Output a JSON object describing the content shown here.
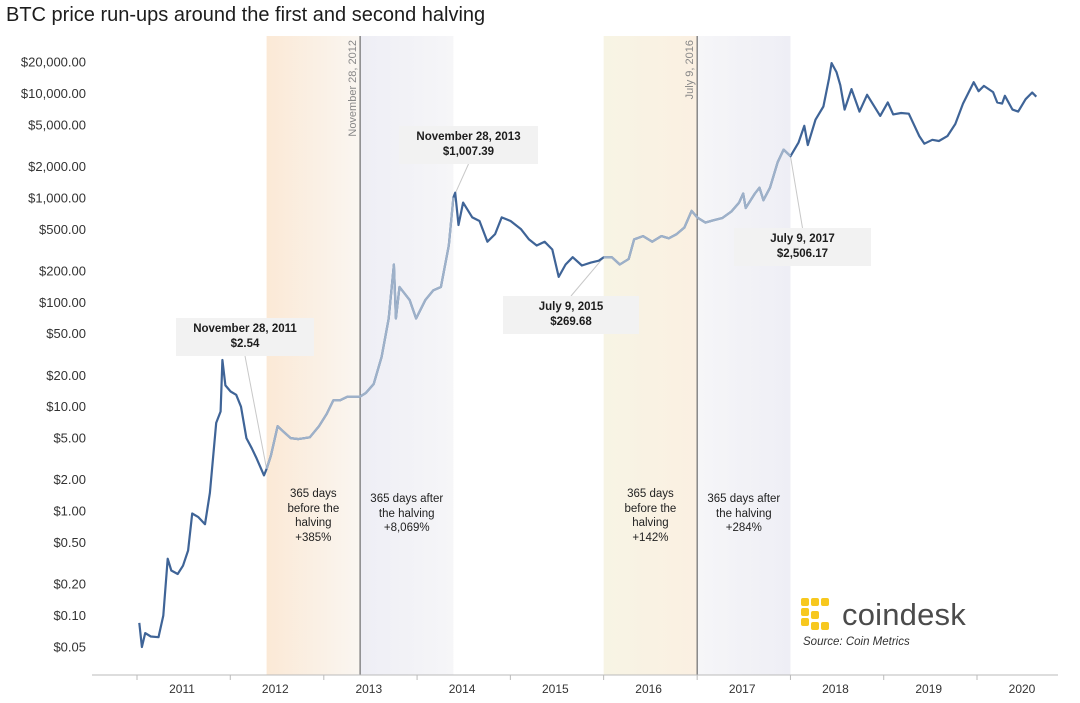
{
  "chart_data": {
    "type": "line",
    "title": "BTC price run-ups around the first and second halving",
    "y_scale": "log",
    "x_range": [
      "2010-07-01",
      "2020-03-15"
    ],
    "ylim": [
      0.035,
      28000
    ],
    "y_ticks": [
      {
        "value": 20000,
        "label": "$20,000.00"
      },
      {
        "value": 10000,
        "label": "$10,000.00"
      },
      {
        "value": 5000,
        "label": "$5,000.00"
      },
      {
        "value": 2000,
        "label": "$2,000.00"
      },
      {
        "value": 1000,
        "label": "$1,000.00"
      },
      {
        "value": 500,
        "label": "$500.00"
      },
      {
        "value": 200,
        "label": "$200.00"
      },
      {
        "value": 100,
        "label": "$100.00"
      },
      {
        "value": 50,
        "label": "$50.00"
      },
      {
        "value": 20,
        "label": "$20.00"
      },
      {
        "value": 10,
        "label": "$10.00"
      },
      {
        "value": 5,
        "label": "$5.00"
      },
      {
        "value": 2,
        "label": "$2.00"
      },
      {
        "value": 1,
        "label": "$1.00"
      },
      {
        "value": 0.5,
        "label": "$0.50"
      },
      {
        "value": 0.2,
        "label": "$0.20"
      },
      {
        "value": 0.1,
        "label": "$0.10"
      },
      {
        "value": 0.05,
        "label": "$0.05"
      }
    ],
    "x_ticks": [
      {
        "date": "2011-01-01",
        "label": "2011"
      },
      {
        "date": "2012-01-01",
        "label": "2012"
      },
      {
        "date": "2013-01-01",
        "label": "2013"
      },
      {
        "date": "2014-01-01",
        "label": "2014"
      },
      {
        "date": "2015-01-01",
        "label": "2015"
      },
      {
        "date": "2016-01-01",
        "label": "2016"
      },
      {
        "date": "2017-01-01",
        "label": "2017"
      },
      {
        "date": "2018-01-01",
        "label": "2018"
      },
      {
        "date": "2019-01-01",
        "label": "2019"
      },
      {
        "date": "2020-01-01",
        "label": "2020"
      }
    ],
    "series": [
      {
        "color": "#3f6497",
        "highlight_color": "#9eb1c9",
        "points": [
          [
            "2010-07-18",
            0.085
          ],
          [
            "2010-07-28",
            0.05
          ],
          [
            "2010-08-10",
            0.068
          ],
          [
            "2010-09-01",
            0.063
          ],
          [
            "2010-10-01",
            0.062
          ],
          [
            "2010-10-20",
            0.1
          ],
          [
            "2010-11-06",
            0.35
          ],
          [
            "2010-11-20",
            0.27
          ],
          [
            "2010-12-15",
            0.25
          ],
          [
            "2011-01-05",
            0.3
          ],
          [
            "2011-01-25",
            0.42
          ],
          [
            "2011-02-10",
            0.95
          ],
          [
            "2011-03-05",
            0.88
          ],
          [
            "2011-04-01",
            0.75
          ],
          [
            "2011-04-20",
            1.5
          ],
          [
            "2011-05-15",
            7
          ],
          [
            "2011-06-01",
            9
          ],
          [
            "2011-06-08",
            28
          ],
          [
            "2011-06-20",
            16
          ],
          [
            "2011-07-10",
            14
          ],
          [
            "2011-08-01",
            13
          ],
          [
            "2011-08-20",
            10
          ],
          [
            "2011-09-10",
            5
          ],
          [
            "2011-10-01",
            4
          ],
          [
            "2011-10-20",
            3.2
          ],
          [
            "2011-11-18",
            2.2
          ],
          [
            "2011-11-28",
            2.54
          ],
          [
            "2011-12-15",
            3.4
          ],
          [
            "2012-01-10",
            6.5
          ],
          [
            "2012-02-01",
            5.8
          ],
          [
            "2012-03-01",
            5.0
          ],
          [
            "2012-04-01",
            4.9
          ],
          [
            "2012-05-15",
            5.1
          ],
          [
            "2012-06-20",
            6.5
          ],
          [
            "2012-07-20",
            8.5
          ],
          [
            "2012-08-15",
            11.5
          ],
          [
            "2012-09-10",
            11.5
          ],
          [
            "2012-10-10",
            12.5
          ],
          [
            "2012-11-28",
            12.5
          ],
          [
            "2012-12-20",
            13.5
          ],
          [
            "2013-01-20",
            16.5
          ],
          [
            "2013-02-20",
            30
          ],
          [
            "2013-03-20",
            70
          ],
          [
            "2013-04-09",
            230
          ],
          [
            "2013-04-17",
            70
          ],
          [
            "2013-05-01",
            140
          ],
          [
            "2013-06-10",
            105
          ],
          [
            "2013-07-05",
            70
          ],
          [
            "2013-08-10",
            105
          ],
          [
            "2013-09-10",
            130
          ],
          [
            "2013-10-10",
            140
          ],
          [
            "2013-11-10",
            350
          ],
          [
            "2013-11-28",
            1007.39
          ],
          [
            "2013-12-05",
            1120
          ],
          [
            "2013-12-18",
            550
          ],
          [
            "2014-01-05",
            900
          ],
          [
            "2014-02-10",
            650
          ],
          [
            "2014-03-10",
            600
          ],
          [
            "2014-04-10",
            380
          ],
          [
            "2014-05-10",
            450
          ],
          [
            "2014-06-05",
            650
          ],
          [
            "2014-07-10",
            600
          ],
          [
            "2014-08-20",
            500
          ],
          [
            "2014-09-20",
            400
          ],
          [
            "2014-10-20",
            350
          ],
          [
            "2014-11-20",
            380
          ],
          [
            "2014-12-20",
            320
          ],
          [
            "2015-01-14",
            175
          ],
          [
            "2015-02-10",
            230
          ],
          [
            "2015-03-10",
            270
          ],
          [
            "2015-04-15",
            225
          ],
          [
            "2015-05-20",
            240
          ],
          [
            "2015-06-20",
            250
          ],
          [
            "2015-07-09",
            269.68
          ],
          [
            "2015-08-10",
            270
          ],
          [
            "2015-09-10",
            230
          ],
          [
            "2015-10-15",
            260
          ],
          [
            "2015-11-05",
            400
          ],
          [
            "2015-12-10",
            430
          ],
          [
            "2016-01-15",
            380
          ],
          [
            "2016-02-20",
            430
          ],
          [
            "2016-03-20",
            410
          ],
          [
            "2016-04-20",
            450
          ],
          [
            "2016-05-20",
            520
          ],
          [
            "2016-06-17",
            750
          ],
          [
            "2016-07-09",
            650
          ],
          [
            "2016-08-10",
            580
          ],
          [
            "2016-09-10",
            610
          ],
          [
            "2016-10-15",
            640
          ],
          [
            "2016-11-20",
            740
          ],
          [
            "2016-12-20",
            900
          ],
          [
            "2017-01-05",
            1100
          ],
          [
            "2017-01-15",
            800
          ],
          [
            "2017-02-20",
            1100
          ],
          [
            "2017-03-10",
            1250
          ],
          [
            "2017-03-25",
            950
          ],
          [
            "2017-04-20",
            1250
          ],
          [
            "2017-05-20",
            2200
          ],
          [
            "2017-06-12",
            2900
          ],
          [
            "2017-07-09",
            2506.17
          ],
          [
            "2017-08-10",
            3400
          ],
          [
            "2017-09-01",
            4900
          ],
          [
            "2017-09-15",
            3200
          ],
          [
            "2017-10-15",
            5600
          ],
          [
            "2017-11-15",
            7500
          ],
          [
            "2017-12-07",
            14000
          ],
          [
            "2017-12-17",
            19500
          ],
          [
            "2018-01-05",
            16000
          ],
          [
            "2018-01-20",
            12000
          ],
          [
            "2018-02-06",
            7000
          ],
          [
            "2018-03-05",
            11000
          ],
          [
            "2018-04-05",
            6700
          ],
          [
            "2018-05-05",
            9700
          ],
          [
            "2018-06-25",
            6100
          ],
          [
            "2018-07-25",
            8200
          ],
          [
            "2018-08-15",
            6300
          ],
          [
            "2018-09-15",
            6500
          ],
          [
            "2018-10-15",
            6400
          ],
          [
            "2018-11-25",
            3900
          ],
          [
            "2018-12-15",
            3300
          ],
          [
            "2019-01-15",
            3600
          ],
          [
            "2019-02-10",
            3500
          ],
          [
            "2019-03-15",
            3900
          ],
          [
            "2019-04-15",
            5100
          ],
          [
            "2019-05-15",
            8000
          ],
          [
            "2019-06-26",
            12800
          ],
          [
            "2019-07-15",
            10500
          ],
          [
            "2019-08-05",
            11800
          ],
          [
            "2019-09-10",
            10300
          ],
          [
            "2019-09-26",
            8200
          ],
          [
            "2019-10-15",
            8000
          ],
          [
            "2019-10-26",
            9500
          ],
          [
            "2019-11-25",
            7000
          ],
          [
            "2019-12-17",
            6700
          ],
          [
            "2020-01-15",
            8800
          ],
          [
            "2020-02-10",
            10200
          ],
          [
            "2020-02-26",
            9300
          ]
        ],
        "highlight_ranges": [
          [
            "2011-11-28",
            "2013-11-28"
          ],
          [
            "2015-07-09",
            "2017-07-09"
          ]
        ]
      }
    ],
    "shaded_periods": [
      {
        "start": "2011-11-28",
        "end": "2012-11-28",
        "color_start": "#fbe9d6",
        "color_end": "#faf6f1"
      },
      {
        "start": "2012-11-28",
        "end": "2013-11-28",
        "color_start": "#eeeef5",
        "color_end": "#f6f6f8"
      },
      {
        "start": "2015-07-09",
        "end": "2016-07-09",
        "color_start": "#f7f4e4",
        "color_end": "#fbf0e2"
      },
      {
        "start": "2016-07-09",
        "end": "2017-07-09",
        "color_start": "#f6f6f8",
        "color_end": "#eeeef5"
      }
    ],
    "halving_lines": [
      {
        "date": "2012-11-28",
        "label": "November 28, 2012"
      },
      {
        "date": "2016-07-09",
        "label": "July 9, 2016"
      }
    ],
    "period_labels": [
      {
        "lines": [
          "365 days",
          "before the",
          "halving",
          "+385%"
        ]
      },
      {
        "lines": [
          "365 days after",
          "the halving",
          "+8,069%"
        ]
      },
      {
        "lines": [
          "365 days",
          "before the",
          "halving",
          "+142%"
        ]
      },
      {
        "lines": [
          "365 days after",
          "the halving",
          "+284%"
        ]
      }
    ],
    "callouts": [
      {
        "date": "2011-11-28",
        "value": 2.54,
        "line1": "November 28, 2011",
        "line2": "$2.54"
      },
      {
        "date": "2013-11-28",
        "value": 1007.39,
        "line1": "November 28, 2013",
        "line2": "$1,007.39"
      },
      {
        "date": "2015-07-09",
        "value": 269.68,
        "line1": "July 9, 2015",
        "line2": "$269.68"
      },
      {
        "date": "2017-07-09",
        "value": 2506.17,
        "line1": "July 9, 2017",
        "line2": "$2,506.17"
      }
    ],
    "grid": false
  },
  "branding": {
    "name": "coindesk",
    "source": "Source: Coin Metrics",
    "accent_color": "#f7c81e"
  }
}
